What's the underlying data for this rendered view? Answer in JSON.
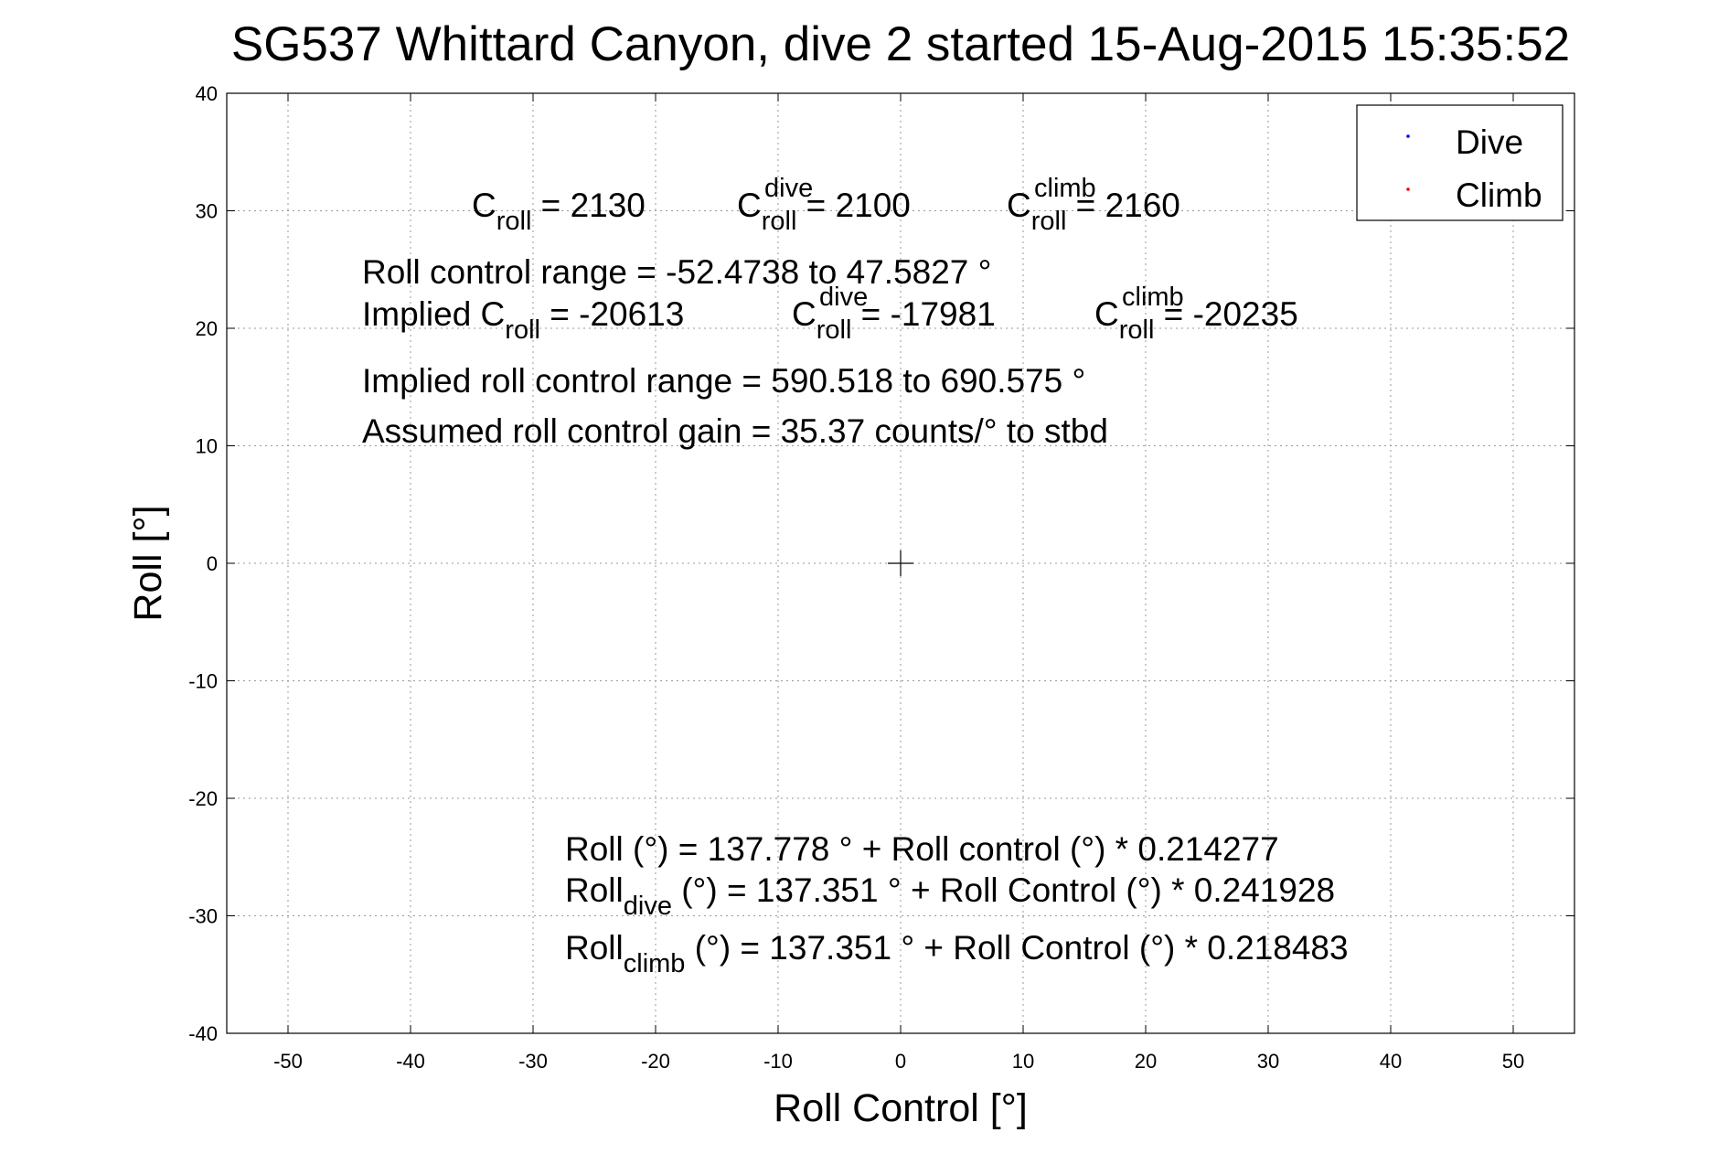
{
  "chart_data": {
    "type": "scatter",
    "title": "SG537 Whittard Canyon, dive 2 started 15-Aug-2015 15:35:52",
    "xlabel": "Roll Control [°]",
    "ylabel": "Roll [°]",
    "xlim": [
      -55,
      55
    ],
    "ylim": [
      -40,
      40
    ],
    "xticks": [
      -50,
      -40,
      -30,
      -20,
      -10,
      0,
      10,
      20,
      30,
      40,
      50
    ],
    "yticks": [
      -40,
      -30,
      -20,
      -10,
      0,
      10,
      20,
      30,
      40
    ],
    "grid": true,
    "legend_position": "top-right",
    "series": [
      {
        "name": "Dive",
        "color": "#0000ff",
        "x": [],
        "y": []
      },
      {
        "name": "Climb",
        "color": "#ff0000",
        "x": [],
        "y": []
      }
    ],
    "crosshair": {
      "x": 0,
      "y": 0
    },
    "annotations": {
      "c_roll": {
        "base": "C",
        "sub": "roll",
        "value": " = 2130"
      },
      "c_roll_dive": {
        "base": "C",
        "sup": "dive",
        "sub": "roll",
        "value": " = 2100"
      },
      "c_roll_climb": {
        "base": "C",
        "sup": "climb",
        "sub": "roll",
        "value": " = 2160"
      },
      "range": "Roll control range = -52.4738 to 47.5827 °",
      "implied_c_roll": {
        "base": "Implied C",
        "sub": "roll",
        "value": " = -20613"
      },
      "implied_c_roll_dive": {
        "base": "C",
        "sup": "dive",
        "sub": "roll",
        "value": " = -17981"
      },
      "implied_c_roll_climb": {
        "base": "C",
        "sup": "climb",
        "sub": "roll",
        "value": " = -20235"
      },
      "implied_range": "Implied roll control range = 590.518 to 690.575 °",
      "gain": "Assumed roll control gain = 35.37 counts/° to stbd",
      "fit": "Roll (°) = 137.778 ° + Roll control (°) * 0.214277",
      "fit_dive": {
        "base": "Roll",
        "sub": "dive",
        "value": " (°) = 137.351 ° + Roll Control (°) * 0.241928"
      },
      "fit_climb": {
        "base": "Roll",
        "sub": "climb",
        "value": " (°) = 137.351 ° + Roll Control (°) * 0.218483"
      }
    }
  }
}
